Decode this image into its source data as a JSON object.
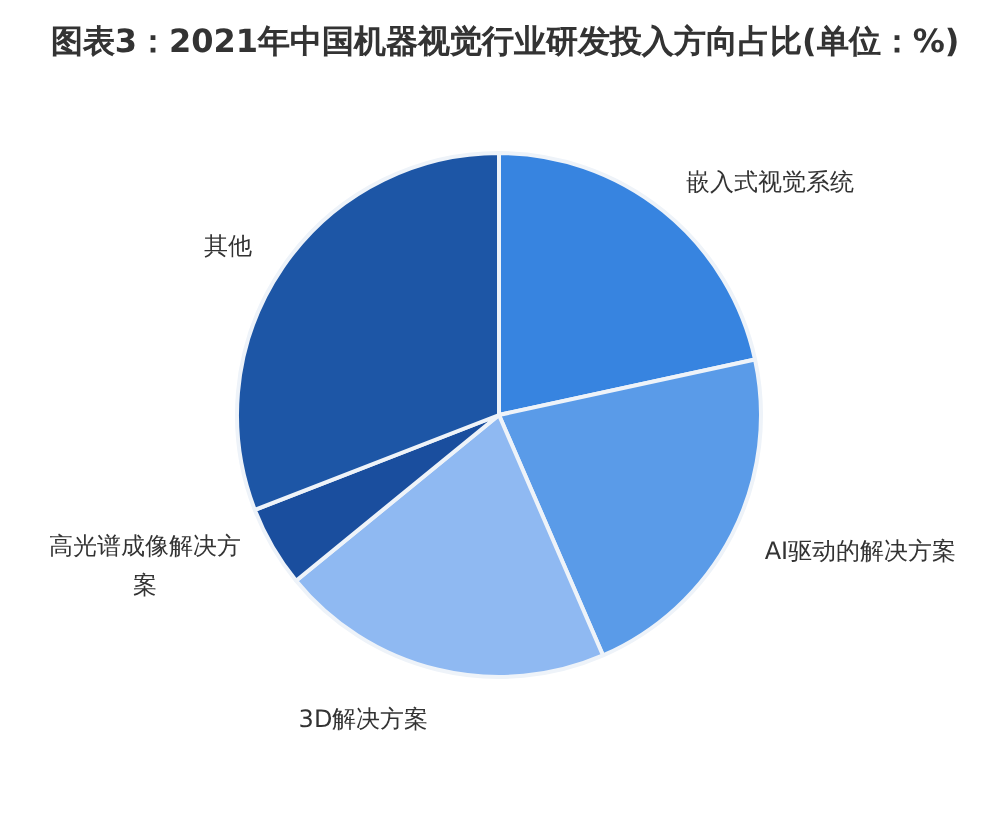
{
  "chart_data": {
    "type": "pie",
    "title": "图表3：2021年中国机器视觉行业研发投入方向占比(单位：%)",
    "categories": [
      "嵌入式视觉系统",
      "AI驱动的解决方案",
      "3D解决方案",
      "高光谱成像解决方案",
      "其他"
    ],
    "values": [
      21.6,
      21.9,
      20.6,
      5.0,
      30.9
    ],
    "colors": [
      "#3784e0",
      "#5a9be8",
      "#8fb9f2",
      "#1a4e9e",
      "#1d56a6"
    ]
  }
}
